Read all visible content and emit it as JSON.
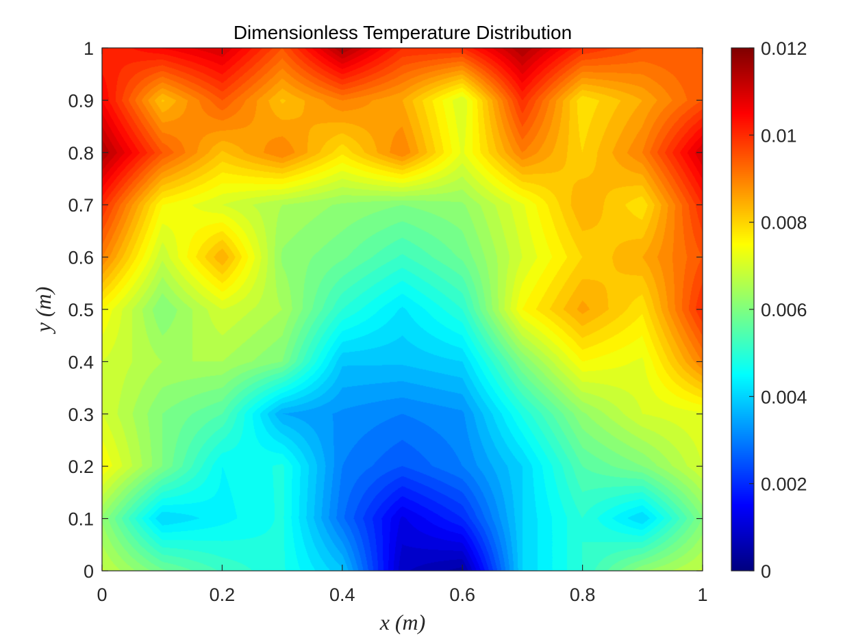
{
  "chart_data": {
    "type": "heatmap",
    "title": "Dimensionless Temperature Distribution",
    "xlabel": "x (m)",
    "ylabel": "y (m)",
    "xlim": [
      0,
      1
    ],
    "ylim": [
      0,
      1
    ],
    "xticks": [
      "0",
      "0.2",
      "0.4",
      "0.6",
      "0.8",
      "1"
    ],
    "yticks": [
      "0",
      "0.1",
      "0.2",
      "0.3",
      "0.4",
      "0.5",
      "0.6",
      "0.7",
      "0.8",
      "0.9",
      "1"
    ],
    "colorbar": {
      "colormap": "jet",
      "range": [
        0,
        0.012
      ],
      "ticks": [
        "0",
        "0.002",
        "0.004",
        "0.006",
        "0.008",
        "0.01",
        "0.012"
      ]
    },
    "grid": false,
    "x": [
      0,
      0.1,
      0.2,
      0.3,
      0.4,
      0.5,
      0.6,
      0.7,
      0.8,
      0.9,
      1
    ],
    "y": [
      0,
      0.1,
      0.2,
      0.3,
      0.4,
      0.5,
      0.6,
      0.7,
      0.8,
      0.9,
      1
    ],
    "z": [
      [
        0.0068,
        0.0058,
        0.0052,
        0.0048,
        0.0038,
        0.0008,
        0.0004,
        0.004,
        0.005,
        0.0062,
        0.0068
      ],
      [
        0.0062,
        0.004,
        0.0044,
        0.0048,
        0.0028,
        0.0012,
        0.002,
        0.004,
        0.005,
        0.004,
        0.006
      ],
      [
        0.0075,
        0.006,
        0.0045,
        0.0048,
        0.003,
        0.0025,
        0.003,
        0.004,
        0.0055,
        0.006,
        0.007
      ],
      [
        0.007,
        0.006,
        0.0055,
        0.0035,
        0.0032,
        0.003,
        0.0032,
        0.0048,
        0.0062,
        0.007,
        0.0072
      ],
      [
        0.007,
        0.0065,
        0.0065,
        0.006,
        0.0038,
        0.0038,
        0.004,
        0.006,
        0.0075,
        0.0072,
        0.009
      ],
      [
        0.0075,
        0.006,
        0.007,
        0.0065,
        0.005,
        0.0042,
        0.005,
        0.0075,
        0.0086,
        0.0078,
        0.01
      ],
      [
        0.009,
        0.0068,
        0.0085,
        0.0062,
        0.0058,
        0.0052,
        0.0058,
        0.007,
        0.008,
        0.0085,
        0.0095
      ],
      [
        0.01,
        0.0075,
        0.007,
        0.0065,
        0.0062,
        0.006,
        0.0062,
        0.0072,
        0.0085,
        0.0078,
        0.01
      ],
      [
        0.0115,
        0.0095,
        0.0082,
        0.009,
        0.0078,
        0.009,
        0.0072,
        0.009,
        0.008,
        0.009,
        0.011
      ],
      [
        0.0105,
        0.0082,
        0.0095,
        0.0082,
        0.009,
        0.0085,
        0.007,
        0.01,
        0.0078,
        0.0085,
        0.0095
      ],
      [
        0.01,
        0.0105,
        0.011,
        0.0095,
        0.0115,
        0.01,
        0.01,
        0.0115,
        0.01,
        0.0095,
        0.0095
      ]
    ]
  }
}
